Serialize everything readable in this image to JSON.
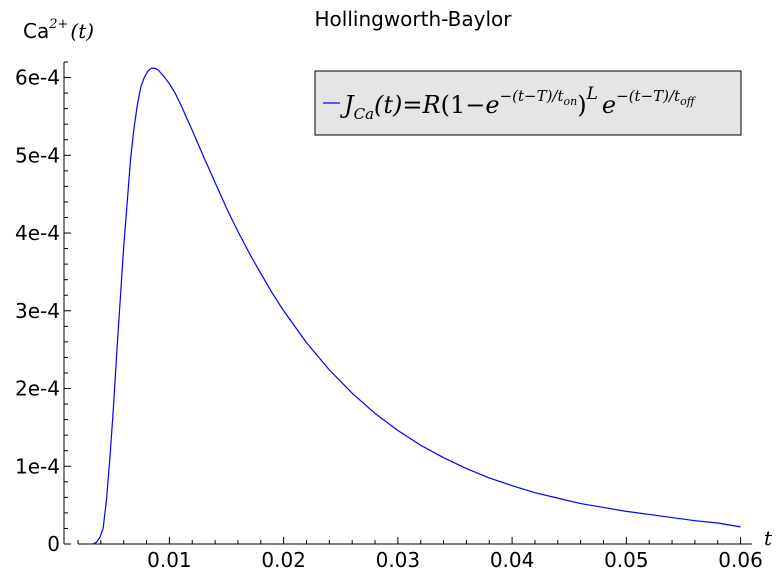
{
  "chart_data": {
    "type": "line",
    "title": "Hollingworth-Baylor",
    "xlabel": "t",
    "ylabel": {
      "base": "Ca",
      "superscript": "2+",
      "suffix": "(t)"
    },
    "xlim": [
      0.002,
      0.061
    ],
    "ylim": [
      0,
      0.00062
    ],
    "x_ticks": [
      {
        "value": 0.01,
        "label": "0.01"
      },
      {
        "value": 0.02,
        "label": "0.02"
      },
      {
        "value": 0.03,
        "label": "0.03"
      },
      {
        "value": 0.04,
        "label": "0.04"
      },
      {
        "value": 0.05,
        "label": "0.05"
      },
      {
        "value": 0.06,
        "label": "0.06"
      }
    ],
    "y_ticks": [
      {
        "value": 0,
        "label": "0"
      },
      {
        "value": 0.0001,
        "label": "1e-4"
      },
      {
        "value": 0.0002,
        "label": "2e-4"
      },
      {
        "value": 0.0003,
        "label": "3e-4"
      },
      {
        "value": 0.0004,
        "label": "4e-4"
      },
      {
        "value": 0.0005,
        "label": "5e-4"
      },
      {
        "value": 0.0006,
        "label": "6e-4"
      }
    ],
    "legend": {
      "placement": "top-right",
      "entries": [
        {
          "formula": {
            "lhs_J": "J",
            "lhs_sub": "Ca",
            "lhs_arg": "(t)",
            "eq": "=",
            "R": "R",
            "open": "(1−",
            "e1": "e",
            "exp1_main": "−(t−T)/t",
            "exp1_sub": "on",
            "close": ")",
            "L": "L",
            "e2": "e",
            "exp2_main": "−(t−T)/t",
            "exp2_sub": "off"
          }
        }
      ]
    },
    "series": [
      {
        "color": "#0000ff",
        "x": [
          0.0033,
          0.0036,
          0.0039,
          0.0042,
          0.0045,
          0.0048,
          0.0051,
          0.0054,
          0.0057,
          0.006,
          0.0063,
          0.0066,
          0.0069,
          0.0072,
          0.0075,
          0.0078,
          0.0081,
          0.0084,
          0.0087,
          0.009,
          0.0093,
          0.0096,
          0.01,
          0.0105,
          0.011,
          0.012,
          0.013,
          0.014,
          0.015,
          0.016,
          0.017,
          0.018,
          0.019,
          0.02,
          0.022,
          0.024,
          0.026,
          0.028,
          0.03,
          0.032,
          0.034,
          0.036,
          0.038,
          0.04,
          0.042,
          0.044,
          0.046,
          0.048,
          0.05,
          0.052,
          0.054,
          0.056,
          0.058,
          0.06
        ],
        "values": [
          0.0,
          2e-06,
          8e-06,
          2e-05,
          5.8e-05,
          0.000112,
          0.000175,
          0.000248,
          0.000315,
          0.000382,
          0.000438,
          0.000495,
          0.000535,
          0.000565,
          0.000588,
          0.0006,
          0.000608,
          0.000612,
          0.000612,
          0.00061,
          0.000605,
          0.0006,
          0.000592,
          0.00058,
          0.000565,
          0.000532,
          0.000498,
          0.000465,
          0.000432,
          0.000402,
          0.000374,
          0.000348,
          0.000323,
          0.0003,
          0.000259,
          0.000224,
          0.000194,
          0.000168,
          0.000146,
          0.000127,
          0.000111,
          9.7e-05,
          8.5e-05,
          7.5e-05,
          6.6e-05,
          5.9e-05,
          5.2e-05,
          4.7e-05,
          4.2e-05,
          3.8e-05,
          3.4e-05,
          3e-05,
          2.7e-05,
          2.2e-05
        ]
      }
    ],
    "grid": false
  }
}
